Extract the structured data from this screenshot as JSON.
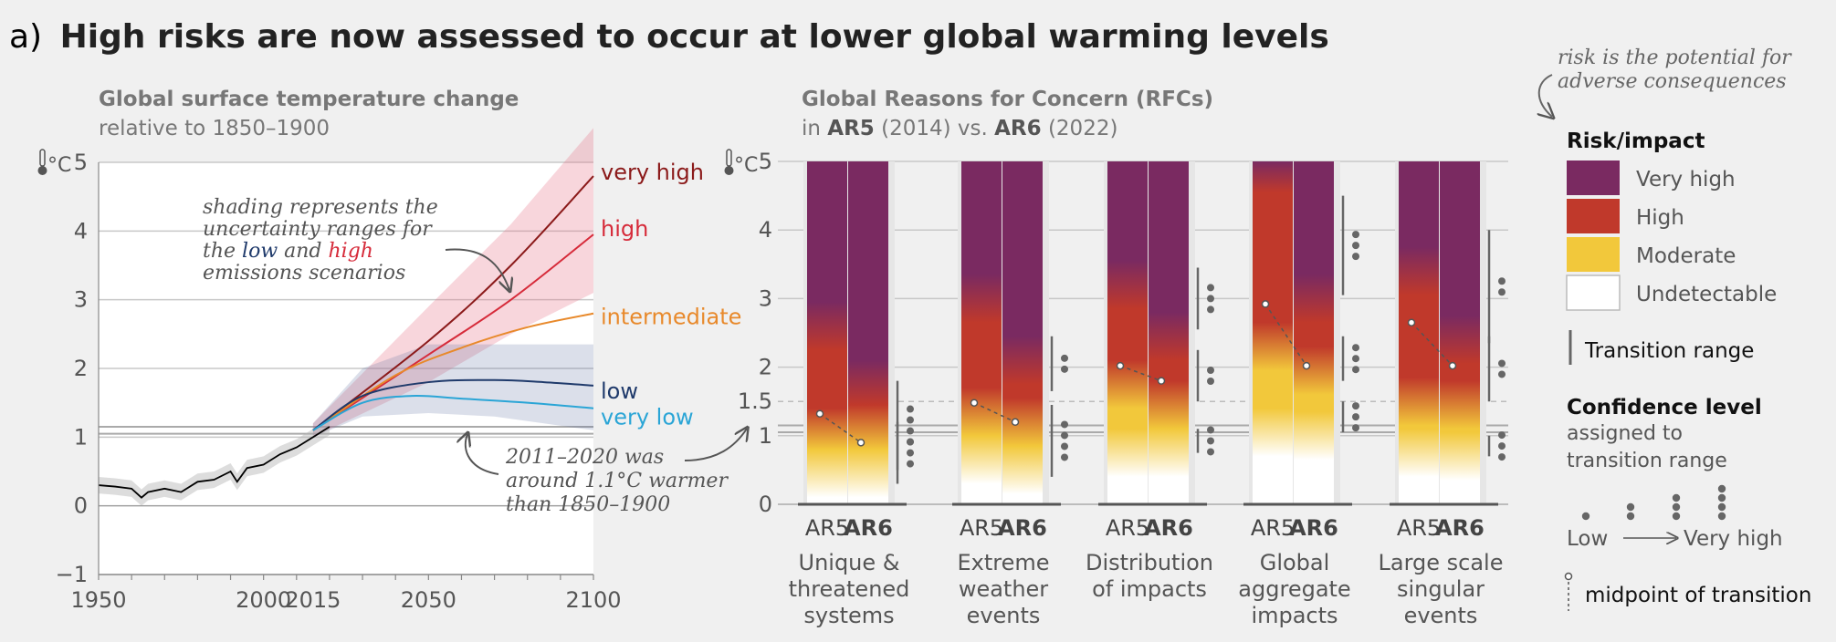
{
  "figure": {
    "panel_letter": "a)",
    "title": "High risks are now assessed to occur at lower global warming levels"
  },
  "left_panel": {
    "title_bold": "Global surface temperature change",
    "title_sub": "relative to 1850–1900"
  },
  "right_panel": {
    "title_bold": "Global Reasons for Concern (RFCs)",
    "subtitle_prefix": "in ",
    "ar5": "AR5",
    "ar5_year": " (2014) vs. ",
    "ar6": "AR6",
    "ar6_year": " (2022)",
    "unit": "°C"
  },
  "annotations": {
    "shading_l1": "shading represents the",
    "shading_l2": "uncertainty ranges for",
    "shading_l3a": "the ",
    "shading_low": "low",
    "shading_and": " and ",
    "shading_high": "high",
    "shading_l4": "emissions scenarios",
    "obs_l1": "2011–2020 was",
    "obs_l2": "around 1.1°C warmer",
    "obs_l3": "than 1850–1900",
    "risk_def_l1": "risk is the potential for",
    "risk_def_l2": "adverse consequences"
  },
  "legend": {
    "risk_title": "Risk/impact",
    "very_high": "Very high",
    "high": "High",
    "moderate": "Moderate",
    "undetectable": "Undetectable",
    "transition_range": "Transition range",
    "confidence_title": "Confidence level",
    "confidence_sub1": "assigned to",
    "confidence_sub2": "transition range",
    "low": "Low",
    "very_high_conf": "Very high",
    "midpoint": "midpoint of transition"
  },
  "colors": {
    "very_high": "#7a2a61",
    "high": "#c0392b",
    "moderate": "#f2c83b",
    "undetectable": "#ffffff",
    "scen_very_high": "#8b1a1a",
    "scen_high": "#d62b3a",
    "scen_intermediate": "#e8892b",
    "scen_low": "#1f3a6b",
    "scen_very_low": "#2aa5d6",
    "observed": "#000000"
  },
  "chart_data": [
    {
      "type": "line",
      "ylabel": "°C",
      "x_ticks": [
        "1950",
        "2000",
        "2015",
        "2050",
        "2100"
      ],
      "y_ticks": [
        "−1",
        "0",
        "1",
        "2",
        "3",
        "4",
        "5"
      ],
      "xlim": [
        1950,
        2100
      ],
      "ylim": [
        -1,
        5
      ],
      "observed": {
        "x": [
          1950,
          1955,
          1960,
          1963,
          1965,
          1970,
          1975,
          1980,
          1985,
          1990,
          1992,
          1995,
          2000,
          2005,
          2010,
          2015,
          2020
        ],
        "y": [
          0.3,
          0.28,
          0.25,
          0.12,
          0.2,
          0.25,
          0.2,
          0.35,
          0.38,
          0.5,
          0.35,
          0.55,
          0.6,
          0.75,
          0.85,
          1.0,
          1.15
        ]
      },
      "series": [
        {
          "name": "very high",
          "x": [
            2015,
            2050,
            2075,
            2100
          ],
          "y": [
            1.1,
            2.4,
            3.5,
            4.8
          ]
        },
        {
          "name": "high",
          "x": [
            2015,
            2050,
            2075,
            2100
          ],
          "y": [
            1.1,
            2.2,
            3.0,
            3.95
          ]
        },
        {
          "name": "intermediate",
          "x": [
            2015,
            2040,
            2060,
            2080,
            2100
          ],
          "y": [
            1.1,
            1.9,
            2.3,
            2.6,
            2.8
          ]
        },
        {
          "name": "low",
          "x": [
            2015,
            2030,
            2050,
            2070,
            2085,
            2100
          ],
          "y": [
            1.1,
            1.6,
            1.8,
            1.83,
            1.8,
            1.75
          ]
        },
        {
          "name": "very low",
          "x": [
            2015,
            2030,
            2045,
            2060,
            2080,
            2100
          ],
          "y": [
            1.1,
            1.5,
            1.6,
            1.56,
            1.5,
            1.42
          ]
        }
      ],
      "ranges": [
        {
          "name": "high",
          "x": [
            2015,
            2050,
            2075,
            2100
          ],
          "lo": [
            1.0,
            1.8,
            2.5,
            3.1
          ],
          "hi": [
            1.2,
            2.9,
            4.1,
            5.5
          ]
        },
        {
          "name": "low",
          "x": [
            2015,
            2030,
            2050,
            2070,
            2100
          ],
          "lo": [
            1.0,
            1.3,
            1.35,
            1.3,
            1.1
          ],
          "hi": [
            1.2,
            2.0,
            2.35,
            2.35,
            2.35
          ]
        }
      ]
    },
    {
      "type": "bar",
      "ylabel": "°C",
      "ylim": [
        0,
        5
      ],
      "y_ticks": [
        "0",
        "1",
        "1.5",
        "2",
        "3",
        "4",
        "5"
      ],
      "categories": [
        {
          "lines": [
            "Unique &",
            "threatened",
            "systems"
          ],
          "ar5": {
            "stops": [
              [
                0.0,
                "undetectable"
              ],
              [
                0.45,
                "moderate"
              ],
              [
                1.05,
                "high"
              ],
              [
                2.6,
                "very_high"
              ]
            ],
            "midpoint": 1.32
          },
          "ar6": {
            "stops": [
              [
                0.0,
                "undetectable"
              ],
              [
                0.45,
                "moderate"
              ],
              [
                1.1,
                "high"
              ],
              [
                1.75,
                "very_high"
              ]
            ],
            "midpoint": 0.9
          },
          "ranges": [
            [
              0.5,
              1.8
            ],
            [
              0.3,
              1.2
            ]
          ],
          "dots": [
            4,
            3
          ]
        },
        {
          "lines": [
            "Extreme",
            "weather",
            "events"
          ],
          "ar5": {
            "stops": [
              [
                0.0,
                "undetectable"
              ],
              [
                0.65,
                "moderate"
              ],
              [
                1.35,
                "high"
              ],
              [
                3.0,
                "very_high"
              ]
            ],
            "midpoint": 1.48
          },
          "ar6": {
            "stops": [
              [
                0.0,
                "undetectable"
              ],
              [
                0.5,
                "moderate"
              ],
              [
                1.2,
                "high"
              ],
              [
                2.1,
                "very_high"
              ]
            ],
            "midpoint": 1.2
          },
          "ranges": [
            [
              1.65,
              2.45
            ],
            [
              0.4,
              1.45
            ]
          ],
          "dots": [
            2,
            4
          ]
        },
        {
          "lines": [
            "Distribution",
            "of impacts"
          ],
          "ar5": {
            "stops": [
              [
                0.0,
                "undetectable"
              ],
              [
                0.75,
                "moderate"
              ],
              [
                1.75,
                "high"
              ],
              [
                3.2,
                "very_high"
              ]
            ],
            "midpoint": 2.02
          },
          "ar6": {
            "stops": [
              [
                0.0,
                "undetectable"
              ],
              [
                0.75,
                "moderate"
              ],
              [
                1.45,
                "high"
              ],
              [
                2.45,
                "very_high"
              ]
            ],
            "midpoint": 1.8
          },
          "ranges": [
            [
              2.55,
              3.45
            ],
            [
              1.5,
              2.25
            ],
            [
              0.75,
              1.1
            ]
          ],
          "dots": [
            3,
            2,
            3
          ]
        },
        {
          "lines": [
            "Global",
            "aggregate",
            "impacts"
          ],
          "ar5": {
            "stops": [
              [
                0.0,
                "undetectable"
              ],
              [
                1.05,
                "moderate"
              ],
              [
                2.3,
                "high"
              ],
              [
                4.9,
                "very_high"
              ]
            ],
            "midpoint": 2.92
          },
          "ar6": {
            "stops": [
              [
                0.0,
                "undetectable"
              ],
              [
                1.0,
                "moderate"
              ],
              [
                1.95,
                "high"
              ],
              [
                3.0,
                "very_high"
              ]
            ],
            "midpoint": 2.02
          },
          "ranges": [
            [
              3.05,
              4.5
            ],
            [
              1.8,
              2.45
            ],
            [
              1.05,
              1.5
            ]
          ],
          "dots": [
            3,
            3,
            3
          ]
        },
        {
          "lines": [
            "Large scale",
            "singular",
            "events"
          ],
          "ar5": {
            "stops": [
              [
                0.0,
                "undetectable"
              ],
              [
                0.75,
                "moderate"
              ],
              [
                1.5,
                "high"
              ],
              [
                3.4,
                "very_high"
              ]
            ],
            "midpoint": 2.65
          },
          "ar6": {
            "stops": [
              [
                0.0,
                "undetectable"
              ],
              [
                0.7,
                "moderate"
              ],
              [
                1.45,
                "high"
              ],
              [
                2.4,
                "very_high"
              ]
            ],
            "midpoint": 2.02
          },
          "ranges": [
            [
              2.35,
              4.0
            ],
            [
              1.5,
              2.45
            ],
            [
              0.7,
              1.0
            ]
          ],
          "dots": [
            2,
            2,
            3
          ]
        }
      ],
      "bar_labels": [
        "AR5",
        "AR6"
      ]
    }
  ]
}
